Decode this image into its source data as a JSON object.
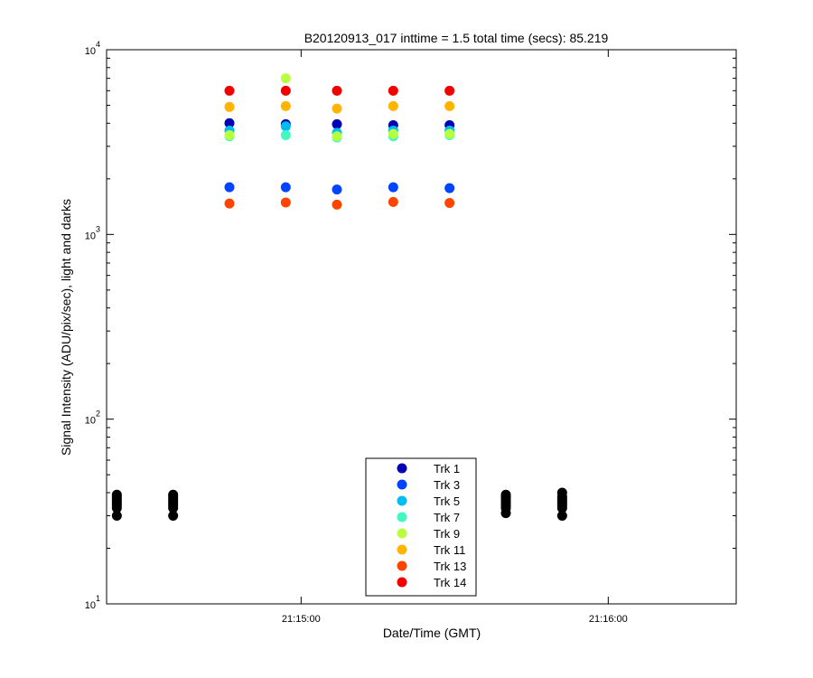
{
  "chart_data": {
    "type": "scatter",
    "title": "B20120913_017 inttime = 1.5 total time (secs): 85.219",
    "x_label": "Date/Time (GMT)",
    "y_label": "Signal Intensity (ADU/pix/sec), light and darks",
    "log_y": true,
    "minor_ticks": true,
    "xlim": [
      "21:14:22",
      "21:16:25"
    ],
    "xticks": [
      "21:15:00",
      "21:16:00"
    ],
    "ylim": [
      10,
      10000
    ],
    "yticks": [
      {
        "value": 10,
        "label": "10",
        "exponent": "1"
      },
      {
        "value": 100,
        "label": "10",
        "exponent": "2"
      },
      {
        "value": 1000,
        "label": "10",
        "exponent": "3"
      },
      {
        "value": 10000,
        "label": "10",
        "exponent": "4"
      }
    ],
    "legend": "bottom",
    "x": [
      "21:14:46",
      "21:14:57",
      "21:15:07",
      "21:15:18",
      "21:15:29"
    ],
    "series": [
      {
        "name": "Trk 1",
        "color": "#0000b4",
        "values": [
          4000,
          3950,
          3950,
          3900,
          3900
        ]
      },
      {
        "name": "Trk 3",
        "color": "#0044ff",
        "values": [
          1800,
          1800,
          1750,
          1800,
          1780
        ]
      },
      {
        "name": "Trk 5",
        "color": "#00bcf0",
        "values": [
          3650,
          3850,
          3550,
          3650,
          3650
        ]
      },
      {
        "name": "Trk 7",
        "color": "#40f8c0",
        "values": [
          3400,
          3450,
          3350,
          3400,
          3450
        ]
      },
      {
        "name": "Trk 9",
        "color": "#b8ff40",
        "values": [
          3450,
          7000,
          3400,
          3500,
          3500
        ]
      },
      {
        "name": "Trk 11",
        "color": "#ffb400",
        "values": [
          4900,
          4950,
          4800,
          4950,
          4950
        ]
      },
      {
        "name": "Trk 13",
        "color": "#ff4400",
        "values": [
          1470,
          1490,
          1450,
          1500,
          1480
        ]
      },
      {
        "name": "Trk 14",
        "color": "#f20000",
        "values": [
          6000,
          6000,
          6000,
          6000,
          6000
        ]
      }
    ],
    "darks": {
      "color": "#000000",
      "x": [
        "21:14:24",
        "21:14:24",
        "21:14:24",
        "21:14:24",
        "21:14:24",
        "21:14:24",
        "21:14:24",
        "21:14:24",
        "21:14:35",
        "21:14:35",
        "21:14:35",
        "21:14:35",
        "21:14:35",
        "21:14:35",
        "21:14:35",
        "21:14:35",
        "21:15:40",
        "21:15:40",
        "21:15:40",
        "21:15:40",
        "21:15:40",
        "21:15:40",
        "21:15:40",
        "21:15:40",
        "21:15:51",
        "21:15:51",
        "21:15:51",
        "21:15:51",
        "21:15:51",
        "21:15:51",
        "21:15:51",
        "21:15:51"
      ],
      "values": [
        30,
        33,
        34,
        35,
        36,
        37,
        38,
        39,
        30,
        33,
        34,
        35,
        36,
        37,
        38,
        39,
        31,
        33,
        34,
        35,
        36,
        37,
        38,
        39,
        30,
        33,
        34,
        35,
        36,
        37,
        38,
        40
      ]
    }
  }
}
